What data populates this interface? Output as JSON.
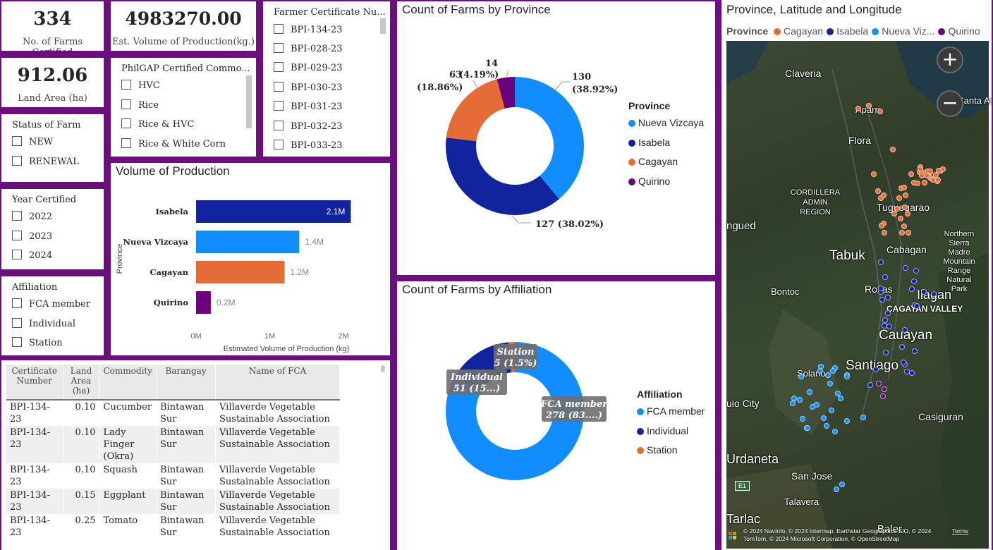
{
  "kpis": {
    "farms_certified": {
      "value": "334",
      "label": "No. of Farms Certified"
    },
    "production": {
      "value": "4983270.00",
      "label": "Est. Volume of Production(kg.)"
    },
    "land_area": {
      "value": "912.06",
      "label": "Land Area (ha)"
    }
  },
  "slicers": {
    "status": {
      "title": "Status of Farm",
      "options": [
        "NEW",
        "RENEWAL"
      ]
    },
    "year": {
      "title": "Year Certified",
      "options": [
        "2022",
        "2023",
        "2024"
      ]
    },
    "affiliation": {
      "title": "Affiliation",
      "options": [
        "FCA member",
        "Individual",
        "Station"
      ]
    },
    "commodity": {
      "title": "PhilGAP Certified Commo...",
      "options": [
        "HVC",
        "Rice",
        "Rice & HVC",
        "Rice & White Corn"
      ]
    },
    "certificate": {
      "title": "Farmer Certificate Nu...",
      "options": [
        "BPI-134-23",
        "BPI-028-23",
        "BPI-029-23",
        "BPI-030-23",
        "BPI-031-23",
        "BPI-032-23",
        "BPI-033-23"
      ]
    }
  },
  "volume_chart": {
    "title": "Volume of Production",
    "ylabel": "Province",
    "xlabel": "Estimated Volume of Production (kg)",
    "ticks": [
      "0M",
      "1M",
      "2M"
    ]
  },
  "province_chart": {
    "title": "Count of Farms by Province",
    "legend_title": "Province"
  },
  "affiliation_chart": {
    "title": "Count of Farms by Affiliation",
    "legend_title": "Affiliation"
  },
  "chart_data": [
    {
      "type": "bar",
      "orientation": "horizontal",
      "categories": [
        "Isabela",
        "Nueva Vizcaya",
        "Cagayan",
        "Quirino"
      ],
      "values": [
        2100000,
        1400000,
        1200000,
        200000
      ],
      "data_labels": [
        "2.1M",
        "1.4M",
        "1.2M",
        "0.2M"
      ],
      "colors": [
        "#12239e",
        "#118dff",
        "#e66c37",
        "#6b007b"
      ],
      "xlim": [
        0,
        2000000
      ],
      "xlabel": "Estimated Volume of Production (kg)",
      "ylabel": "Province",
      "title": "Volume of Production"
    },
    {
      "type": "pie",
      "style": "donut",
      "title": "Count of Farms by Province",
      "categories": [
        "Nueva Vizcaya",
        "Isabela",
        "Cagayan",
        "Quirino"
      ],
      "values": [
        130,
        127,
        63,
        14
      ],
      "percents": [
        "38.92%",
        "38.02%",
        "18.86%",
        "4.19%"
      ],
      "colors": [
        "#118dff",
        "#12239e",
        "#e66c37",
        "#6b007b"
      ],
      "legend": "right"
    },
    {
      "type": "pie",
      "style": "donut",
      "title": "Count of Farms by Affiliation",
      "categories": [
        "FCA member",
        "Individual",
        "Station"
      ],
      "values": [
        278,
        51,
        5
      ],
      "data_labels": [
        "FCA member\n278 (83....)",
        "Individual\n51 (15...)",
        "Station\n5 (1.5%)"
      ],
      "colors": [
        "#118dff",
        "#12239e",
        "#e66c37"
      ],
      "legend": "right"
    }
  ],
  "table": {
    "headers": [
      "Certificate Number",
      "Land Area (ha)",
      "Commodity",
      "Barangay",
      "Name of FCA"
    ],
    "rows": [
      [
        "BPI-134-23",
        "0.10",
        "Cucumber",
        "Bintawan Sur",
        "Villaverde Vegetable Sustainable Association"
      ],
      [
        "BPI-134-23",
        "0.10",
        "Lady Finger (Okra)",
        "Bintawan Sur",
        "Villaverde Vegetable Sustainable Association"
      ],
      [
        "BPI-134-23",
        "0.10",
        "Squash",
        "Bintawan Sur",
        "Villaverde Vegetable Sustainable Association"
      ],
      [
        "BPI-134-23",
        "0.15",
        "Eggplant",
        "Bintawan Sur",
        "Villaverde Vegetable Sustainable Association"
      ],
      [
        "BPI-134-23",
        "0.25",
        "Tomato",
        "Bintawan Sur",
        "Villaverde Vegetable Sustainable Association"
      ]
    ]
  },
  "map": {
    "title": "Province, Latitude and Longitude",
    "legend_title": "Province",
    "legend": [
      {
        "name": "Cagayan",
        "color": "#e66c37"
      },
      {
        "name": "Isabela",
        "color": "#12239e"
      },
      {
        "name": "Nueva Viz...",
        "color": "#118dff"
      },
      {
        "name": "Quirino",
        "color": "#6b007b"
      }
    ],
    "places": [
      "Claveria",
      "Aparri",
      "Flora",
      "CORDILLERA ADMIN REGION",
      "Tuguegarao",
      "ngued",
      "Tabuk",
      "Cabagan",
      "Northern Sierra Madre Mountain Range Natural Park",
      "Bontoc",
      "Roxas",
      "Ilagan",
      "CAGAYAN VALLEY",
      "Cauayan",
      "Santiago",
      "Solano",
      "uio City",
      "Casiguran",
      "Urdaneta",
      "San Jose",
      "Talavera",
      "Tarlac",
      "Baler",
      "Santa Ana"
    ],
    "zoom_in": "+",
    "zoom_out": "−",
    "attribution": "© 2024 NavInfo, © 2024 Intermap, Earthstar Geographics SIO, © 2024 TomTom, © 2024 Microsoft Corporation, © OpenStreetMap",
    "terms": "Terms",
    "road_badge": "E1"
  }
}
